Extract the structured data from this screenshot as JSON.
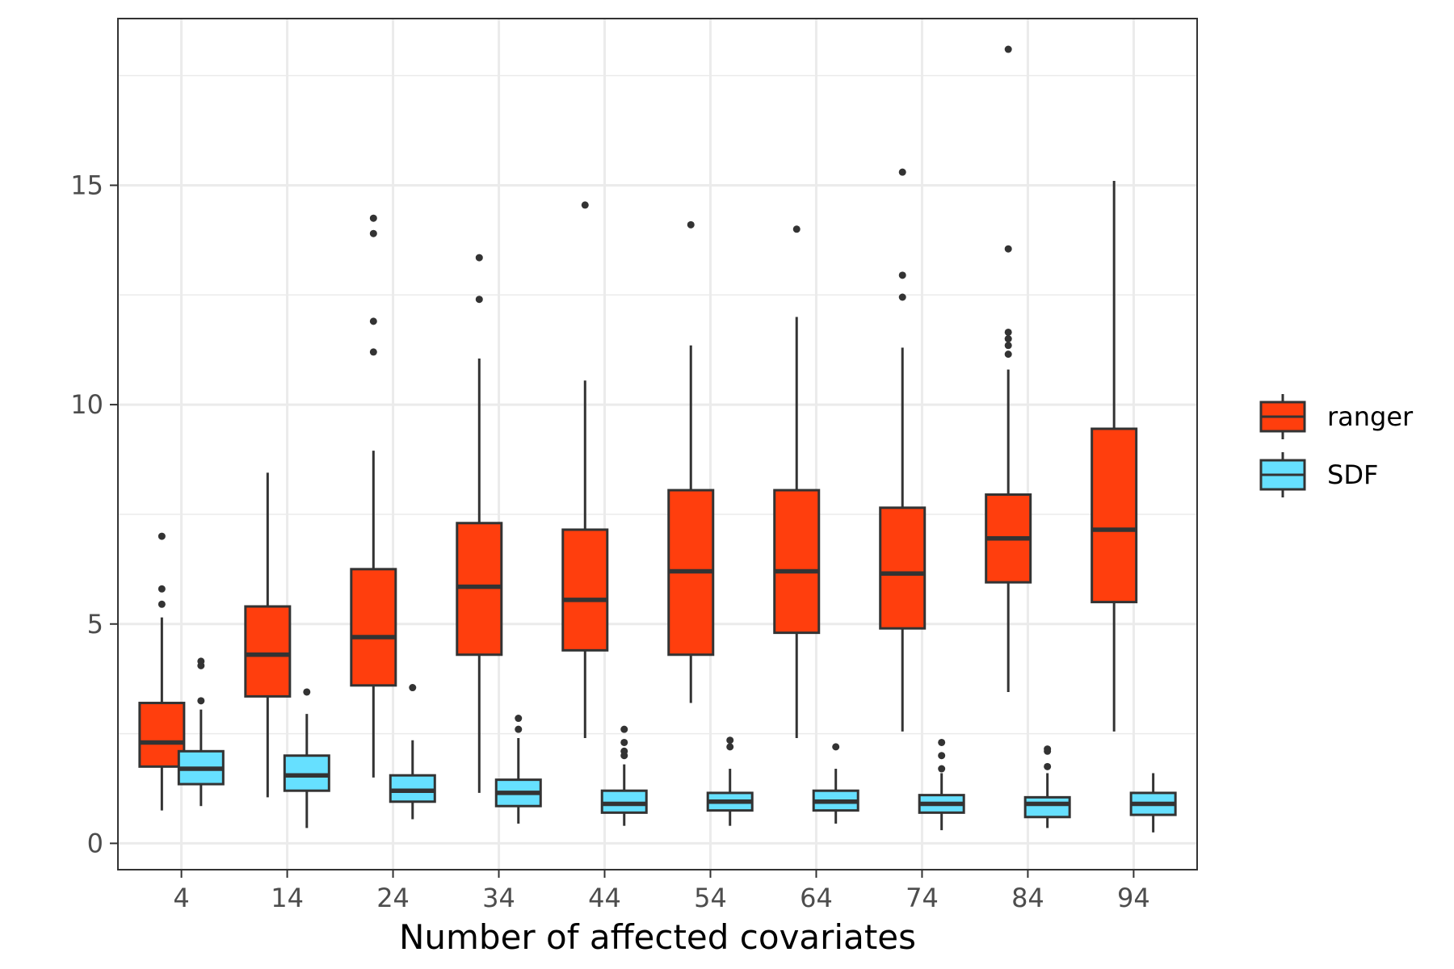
{
  "chart_data": {
    "type": "boxplot",
    "title": "",
    "xlabel": "Number of affected covariates",
    "ylabel": "",
    "ylim": [
      -0.6,
      18.8
    ],
    "yticks": [
      0,
      5,
      10,
      15
    ],
    "yminor": [
      2.5,
      7.5,
      12.5,
      17.5
    ],
    "grid": true,
    "legend": "right",
    "categories": [
      "4",
      "14",
      "24",
      "34",
      "44",
      "54",
      "64",
      "74",
      "84",
      "94"
    ],
    "series": [
      {
        "name": "ranger",
        "color": "#FF3E0D",
        "boxes": [
          {
            "low": 0.75,
            "q1": 1.75,
            "median": 2.3,
            "q3": 3.2,
            "high": 5.15,
            "outliers": [
              5.45,
              5.8,
              7.0
            ]
          },
          {
            "low": 1.05,
            "q1": 3.35,
            "median": 4.3,
            "q3": 5.4,
            "high": 8.45,
            "outliers": []
          },
          {
            "low": 1.5,
            "q1": 3.6,
            "median": 4.7,
            "q3": 6.25,
            "high": 8.95,
            "outliers": [
              11.2,
              11.9,
              13.9,
              14.25
            ]
          },
          {
            "low": 1.15,
            "q1": 4.3,
            "median": 5.85,
            "q3": 7.3,
            "high": 11.05,
            "outliers": [
              12.4,
              13.35
            ]
          },
          {
            "low": 2.4,
            "q1": 4.4,
            "median": 5.55,
            "q3": 7.15,
            "high": 10.55,
            "outliers": [
              14.55
            ]
          },
          {
            "low": 3.2,
            "q1": 4.3,
            "median": 6.2,
            "q3": 8.05,
            "high": 11.35,
            "outliers": [
              14.1
            ]
          },
          {
            "low": 2.4,
            "q1": 4.8,
            "median": 6.2,
            "q3": 8.05,
            "high": 12.0,
            "outliers": [
              14.0
            ]
          },
          {
            "low": 2.55,
            "q1": 4.9,
            "median": 6.15,
            "q3": 7.65,
            "high": 11.3,
            "outliers": [
              12.45,
              12.95,
              15.3
            ]
          },
          {
            "low": 3.45,
            "q1": 5.95,
            "median": 6.95,
            "q3": 7.95,
            "high": 10.8,
            "outliers": [
              11.15,
              11.35,
              11.5,
              11.65,
              13.55,
              18.1
            ]
          },
          {
            "low": 2.55,
            "q1": 5.5,
            "median": 7.15,
            "q3": 9.45,
            "high": 15.1,
            "outliers": []
          }
        ]
      },
      {
        "name": "SDF",
        "color": "#66E0FF",
        "boxes": [
          {
            "low": 0.85,
            "q1": 1.35,
            "median": 1.7,
            "q3": 2.1,
            "high": 3.05,
            "outliers": [
              3.25,
              4.05,
              4.15
            ]
          },
          {
            "low": 0.35,
            "q1": 1.2,
            "median": 1.55,
            "q3": 2.0,
            "high": 2.95,
            "outliers": [
              3.45
            ]
          },
          {
            "low": 0.55,
            "q1": 0.95,
            "median": 1.2,
            "q3": 1.55,
            "high": 2.35,
            "outliers": [
              3.55
            ]
          },
          {
            "low": 0.45,
            "q1": 0.85,
            "median": 1.15,
            "q3": 1.45,
            "high": 2.4,
            "outliers": [
              2.6,
              2.85
            ]
          },
          {
            "low": 0.4,
            "q1": 0.7,
            "median": 0.9,
            "q3": 1.2,
            "high": 1.8,
            "outliers": [
              2.0,
              2.1,
              2.3,
              2.6
            ]
          },
          {
            "low": 0.4,
            "q1": 0.75,
            "median": 0.95,
            "q3": 1.15,
            "high": 1.7,
            "outliers": [
              2.2,
              2.35
            ]
          },
          {
            "low": 0.45,
            "q1": 0.75,
            "median": 0.95,
            "q3": 1.2,
            "high": 1.7,
            "outliers": [
              2.2
            ]
          },
          {
            "low": 0.3,
            "q1": 0.7,
            "median": 0.9,
            "q3": 1.1,
            "high": 1.6,
            "outliers": [
              1.7,
              2.0,
              2.3
            ]
          },
          {
            "low": 0.35,
            "q1": 0.6,
            "median": 0.9,
            "q3": 1.05,
            "high": 1.6,
            "outliers": [
              1.75,
              2.1,
              2.15
            ]
          },
          {
            "low": 0.25,
            "q1": 0.65,
            "median": 0.9,
            "q3": 1.15,
            "high": 1.6,
            "outliers": []
          }
        ]
      }
    ]
  }
}
